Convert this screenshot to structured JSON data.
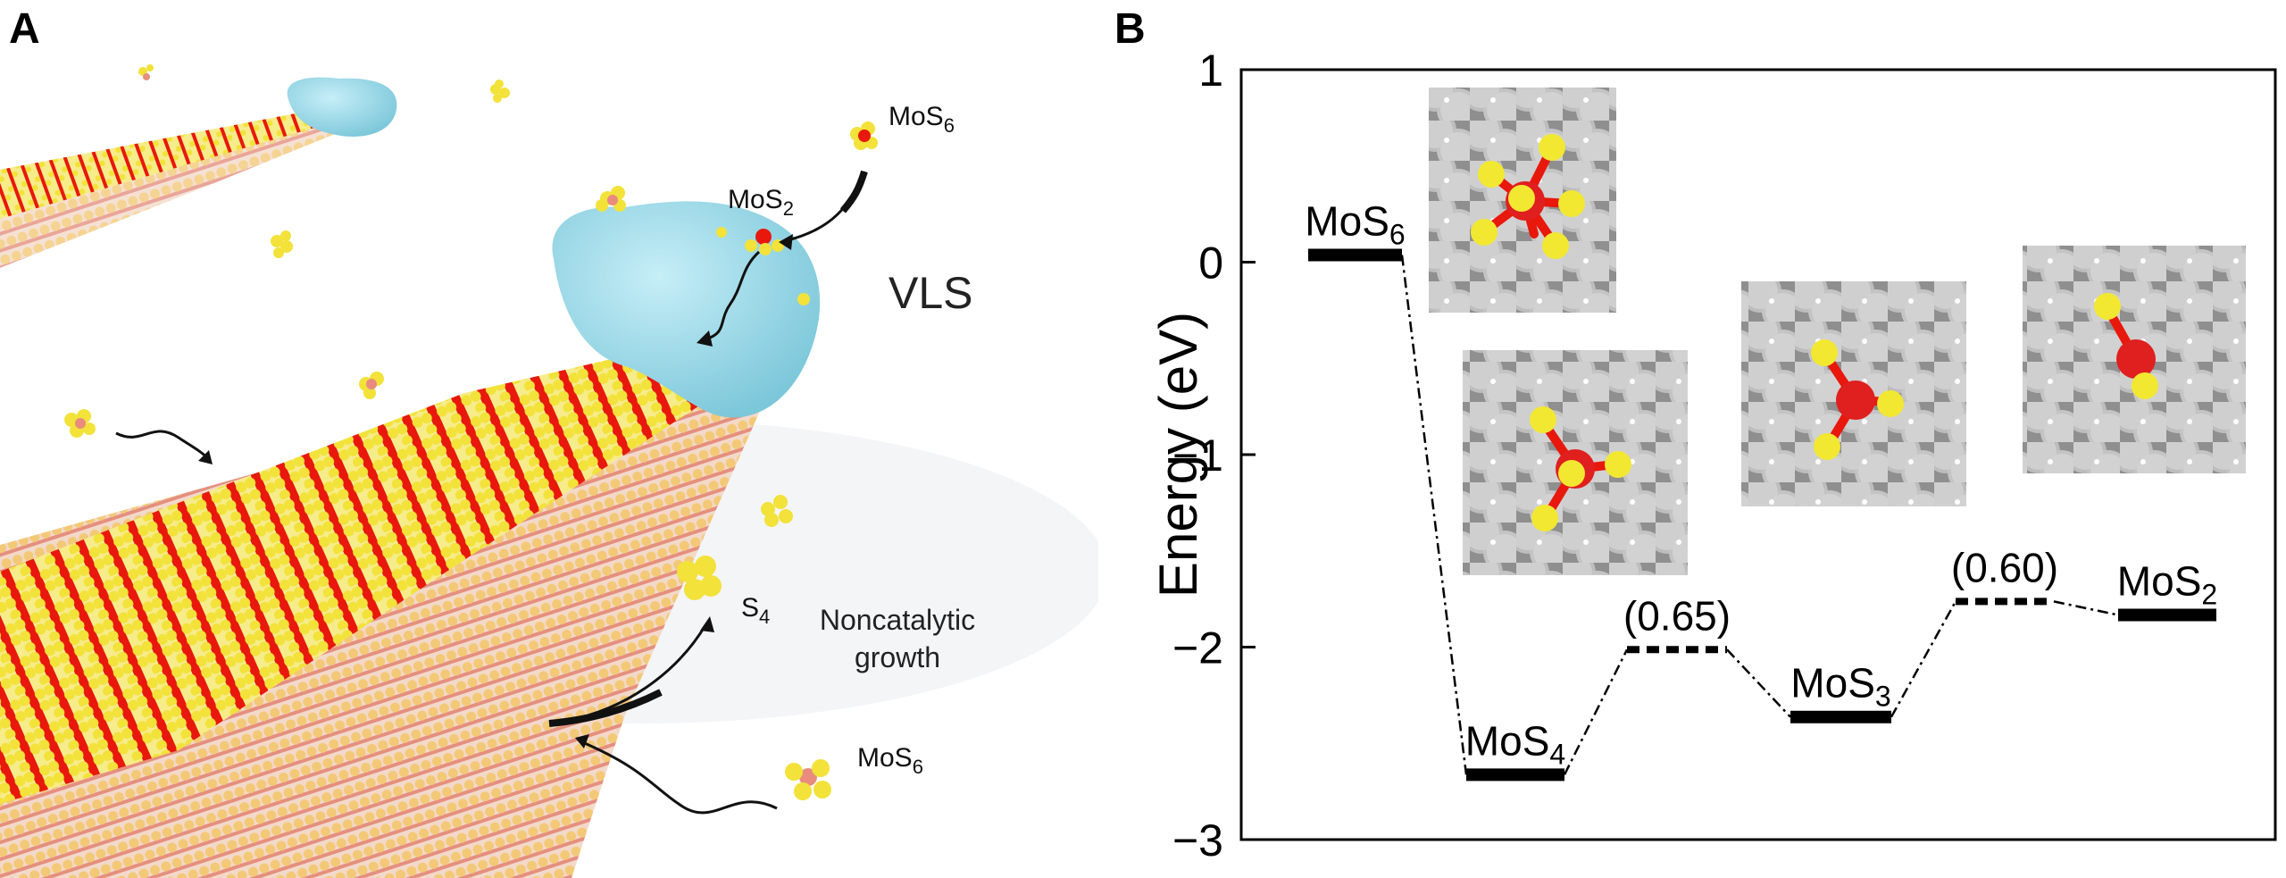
{
  "figure": {
    "panel_a": {
      "letter": "A",
      "labels": {
        "mos6_top": "MoS",
        "mos6_top_sub": "6",
        "mos2": "MoS",
        "mos2_sub": "2",
        "vls": "VLS",
        "s4": "S",
        "s4_sub": "4",
        "noncatalytic_line1": "Noncatalytic",
        "noncatalytic_line2": "growth",
        "mos6_bottom": "MoS",
        "mos6_bottom_sub": "6"
      },
      "colors": {
        "catalyst": "#8fd3e3",
        "sulfur": "#f2e23a",
        "molybdenum": "#e8180c",
        "substrate_atom": "#f0c87a",
        "underlayer": "#e98c7e"
      }
    },
    "panel_b": {
      "letter": "B",
      "chart_data": {
        "type": "line",
        "ylabel": "Energy (eV)",
        "ylim": [
          -3,
          1
        ],
        "yticks": [
          1,
          0,
          -1,
          -2,
          -3
        ],
        "ytick_labels": [
          "1",
          "0",
          "−1",
          "−2",
          "−3"
        ],
        "states": [
          {
            "name": "MoS",
            "sub": "6",
            "energy": 0.0,
            "kind": "state"
          },
          {
            "name": "MoS",
            "sub": "4",
            "energy": -2.7,
            "kind": "state"
          },
          {
            "name": "",
            "sub": "",
            "energy": -2.05,
            "kind": "barrier",
            "label": "(0.65)"
          },
          {
            "name": "MoS",
            "sub": "3",
            "energy": -2.4,
            "kind": "state"
          },
          {
            "name": "",
            "sub": "",
            "energy": -1.8,
            "kind": "barrier",
            "label": "(0.60)"
          },
          {
            "name": "MoS",
            "sub": "2",
            "energy": -1.87,
            "kind": "state"
          }
        ]
      }
    }
  }
}
